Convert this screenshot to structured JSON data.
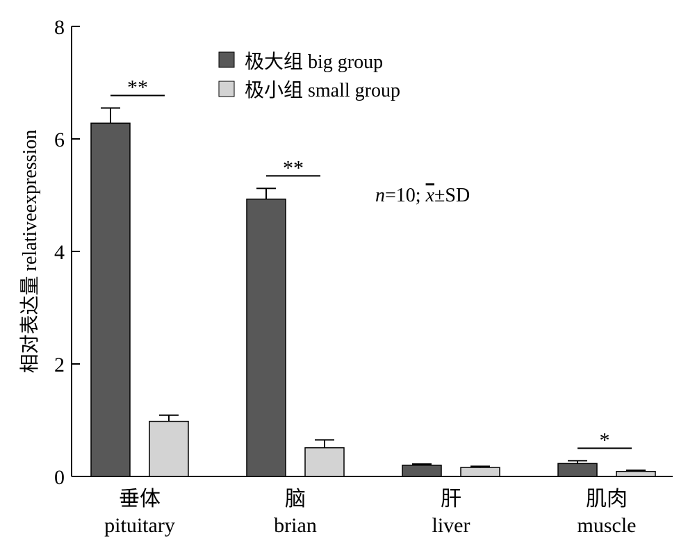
{
  "chart_data": {
    "type": "bar",
    "ylabel": "相对表达量 relativeexpression",
    "ylim": [
      0,
      8
    ],
    "yticks": [
      0,
      2,
      4,
      6,
      8
    ],
    "categories": [
      {
        "zh": "垂体",
        "en": "pituitary"
      },
      {
        "zh": "脑",
        "en": "brian"
      },
      {
        "zh": "肝",
        "en": "liver"
      },
      {
        "zh": "肌肉",
        "en": "muscle"
      }
    ],
    "series": [
      {
        "name": "极大组 big group",
        "color": "#585858",
        "values": [
          6.28,
          4.93,
          0.2,
          0.23
        ],
        "errors": [
          0.27,
          0.19,
          0.02,
          0.05
        ]
      },
      {
        "name": "极小组 small group",
        "color": "#d3d3d3",
        "values": [
          0.98,
          0.51,
          0.16,
          0.09
        ],
        "errors": [
          0.11,
          0.14,
          0.02,
          0.02
        ]
      }
    ],
    "significance": [
      {
        "category": 0,
        "label": "**"
      },
      {
        "category": 1,
        "label": "**"
      },
      {
        "category": 3,
        "label": "*"
      }
    ],
    "legend_position": "top-center",
    "annotation": {
      "n_part": "n",
      "eq_part": "=10; ",
      "mean_part": "x",
      "sd_part": "±SD"
    }
  }
}
